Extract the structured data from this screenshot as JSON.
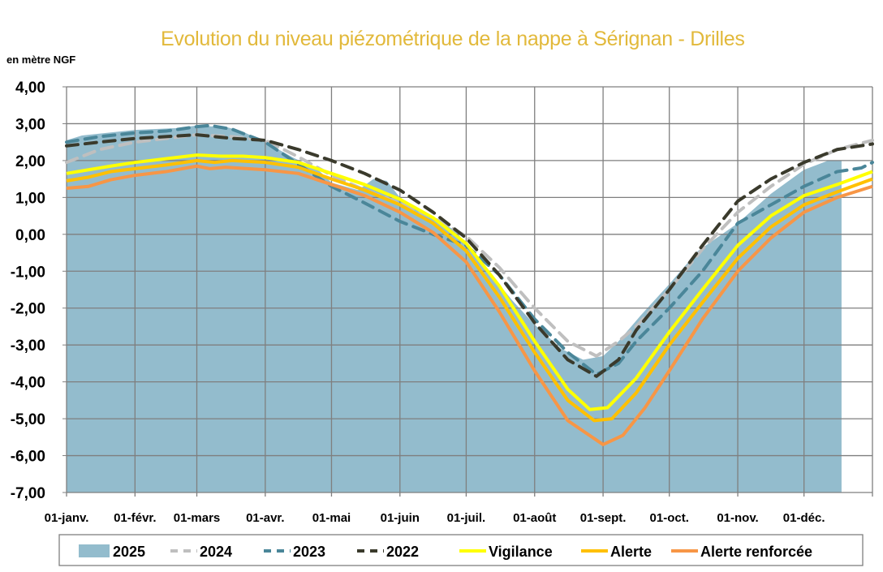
{
  "chart_data": {
    "type": "line",
    "title": "Evolution du niveau piézométrique de la nappe à Sérignan  - Drilles",
    "ylabel": "en mètre NGF",
    "xlabel": "",
    "ylim": [
      -7,
      4
    ],
    "yticks": [
      "4,00",
      "3,00",
      "2,00",
      "1,00",
      "0,00",
      "-1,00",
      "-2,00",
      "-3,00",
      "-4,00",
      "-5,00",
      "-6,00",
      "-7,00"
    ],
    "ytick_values": [
      4,
      3,
      2,
      1,
      0,
      -1,
      -2,
      -3,
      -4,
      -5,
      -6,
      -7
    ],
    "xlim_days": [
      0,
      365
    ],
    "xticks": [
      "01-janv.",
      "01-févr.",
      "01-mars",
      "01-avr.",
      "01-mai",
      "01-juin",
      "01-juil.",
      "01-août",
      "01-sept.",
      "01-oct.",
      "01-nov.",
      "01-déc."
    ],
    "xtick_days": [
      0,
      31,
      59,
      90,
      120,
      151,
      181,
      212,
      243,
      273,
      304,
      334
    ],
    "grid": true,
    "legend_position": "bottom",
    "series": [
      {
        "name": "2025",
        "style": "area",
        "color": "#93BCCD",
        "points": [
          [
            0,
            2.55
          ],
          [
            7,
            2.68
          ],
          [
            31,
            2.83
          ],
          [
            50,
            2.88
          ],
          [
            59,
            2.95
          ],
          [
            73,
            2.9
          ],
          [
            80,
            2.78
          ],
          [
            90,
            2.5
          ],
          [
            103,
            2.07
          ],
          [
            114,
            1.75
          ],
          [
            120,
            1.4
          ],
          [
            132,
            1.2
          ],
          [
            139,
            1.5
          ],
          [
            145,
            1.45
          ],
          [
            151,
            1.0
          ],
          [
            161,
            0.65
          ],
          [
            176,
            0.1
          ],
          [
            181,
            -0.25
          ],
          [
            191,
            -1.0
          ],
          [
            202,
            -1.8
          ],
          [
            212,
            -2.45
          ],
          [
            224,
            -3.1
          ],
          [
            234,
            -3.4
          ],
          [
            243,
            -3.3
          ],
          [
            250,
            -2.9
          ],
          [
            260,
            -2.2
          ],
          [
            273,
            -1.35
          ],
          [
            286,
            -0.45
          ],
          [
            304,
            0.3
          ],
          [
            319,
            1.1
          ],
          [
            334,
            1.75
          ],
          [
            345,
            2.0
          ],
          [
            351,
            2.0
          ]
        ]
      },
      {
        "name": "2024",
        "style": "dash",
        "color": "#BFBFBF",
        "points": [
          [
            0,
            1.95
          ],
          [
            15,
            2.3
          ],
          [
            31,
            2.5
          ],
          [
            59,
            2.7
          ],
          [
            75,
            2.65
          ],
          [
            90,
            2.55
          ],
          [
            105,
            2.1
          ],
          [
            120,
            1.6
          ],
          [
            135,
            1.2
          ],
          [
            151,
            0.85
          ],
          [
            166,
            0.45
          ],
          [
            181,
            -0.05
          ],
          [
            196,
            -0.9
          ],
          [
            212,
            -2.0
          ],
          [
            227,
            -2.9
          ],
          [
            240,
            -3.3
          ],
          [
            250,
            -2.9
          ],
          [
            258,
            -2.5
          ],
          [
            273,
            -1.5
          ],
          [
            288,
            -0.4
          ],
          [
            304,
            0.6
          ],
          [
            319,
            1.3
          ],
          [
            334,
            1.9
          ],
          [
            349,
            2.3
          ],
          [
            365,
            2.55
          ]
        ]
      },
      {
        "name": "2023",
        "style": "dash",
        "color": "#4A8699",
        "points": [
          [
            0,
            2.5
          ],
          [
            15,
            2.65
          ],
          [
            31,
            2.75
          ],
          [
            45,
            2.8
          ],
          [
            59,
            2.92
          ],
          [
            65,
            2.95
          ],
          [
            75,
            2.85
          ],
          [
            90,
            2.5
          ],
          [
            105,
            1.9
          ],
          [
            120,
            1.3
          ],
          [
            135,
            0.85
          ],
          [
            151,
            0.35
          ],
          [
            166,
            0.0
          ],
          [
            181,
            -0.3
          ],
          [
            196,
            -1.1
          ],
          [
            212,
            -2.3
          ],
          [
            227,
            -3.2
          ],
          [
            240,
            -3.8
          ],
          [
            250,
            -3.5
          ],
          [
            258,
            -2.9
          ],
          [
            273,
            -2.0
          ],
          [
            288,
            -1.0
          ],
          [
            304,
            0.3
          ],
          [
            319,
            0.8
          ],
          [
            334,
            1.3
          ],
          [
            349,
            1.7
          ],
          [
            360,
            1.8
          ],
          [
            365,
            1.95
          ]
        ]
      },
      {
        "name": "2022",
        "style": "dash",
        "color": "#3A3A2C",
        "points": [
          [
            0,
            2.4
          ],
          [
            15,
            2.5
          ],
          [
            31,
            2.6
          ],
          [
            59,
            2.7
          ],
          [
            75,
            2.6
          ],
          [
            90,
            2.55
          ],
          [
            105,
            2.3
          ],
          [
            120,
            2.0
          ],
          [
            135,
            1.65
          ],
          [
            151,
            1.2
          ],
          [
            166,
            0.6
          ],
          [
            181,
            -0.1
          ],
          [
            196,
            -1.1
          ],
          [
            212,
            -2.4
          ],
          [
            227,
            -3.4
          ],
          [
            240,
            -3.85
          ],
          [
            250,
            -3.4
          ],
          [
            258,
            -2.6
          ],
          [
            273,
            -1.5
          ],
          [
            288,
            -0.3
          ],
          [
            304,
            0.9
          ],
          [
            319,
            1.5
          ],
          [
            334,
            1.95
          ],
          [
            349,
            2.3
          ],
          [
            365,
            2.45
          ]
        ]
      },
      {
        "name": "Vigilance",
        "style": "solid",
        "color": "#FFFF00",
        "points": [
          [
            0,
            1.65
          ],
          [
            10,
            1.75
          ],
          [
            20,
            1.85
          ],
          [
            31,
            1.95
          ],
          [
            45,
            2.05
          ],
          [
            59,
            2.15
          ],
          [
            70,
            2.12
          ],
          [
            80,
            2.12
          ],
          [
            90,
            2.08
          ],
          [
            105,
            1.95
          ],
          [
            120,
            1.65
          ],
          [
            135,
            1.35
          ],
          [
            151,
            0.95
          ],
          [
            166,
            0.45
          ],
          [
            181,
            -0.25
          ],
          [
            196,
            -1.4
          ],
          [
            212,
            -2.9
          ],
          [
            227,
            -4.2
          ],
          [
            237,
            -4.75
          ],
          [
            245,
            -4.7
          ],
          [
            258,
            -3.9
          ],
          [
            273,
            -2.65
          ],
          [
            288,
            -1.5
          ],
          [
            304,
            -0.3
          ],
          [
            319,
            0.5
          ],
          [
            334,
            1.05
          ],
          [
            349,
            1.35
          ],
          [
            365,
            1.7
          ]
        ]
      },
      {
        "name": "Alerte",
        "style": "solid",
        "color": "#FFC000",
        "points": [
          [
            0,
            1.45
          ],
          [
            10,
            1.55
          ],
          [
            20,
            1.7
          ],
          [
            31,
            1.78
          ],
          [
            45,
            1.88
          ],
          [
            59,
            2.0
          ],
          [
            67,
            1.95
          ],
          [
            75,
            2.0
          ],
          [
            90,
            1.95
          ],
          [
            105,
            1.82
          ],
          [
            120,
            1.5
          ],
          [
            135,
            1.2
          ],
          [
            151,
            0.8
          ],
          [
            166,
            0.3
          ],
          [
            181,
            -0.45
          ],
          [
            196,
            -1.7
          ],
          [
            212,
            -3.2
          ],
          [
            227,
            -4.5
          ],
          [
            239,
            -5.05
          ],
          [
            247,
            -5.0
          ],
          [
            258,
            -4.3
          ],
          [
            273,
            -3.0
          ],
          [
            288,
            -1.85
          ],
          [
            304,
            -0.65
          ],
          [
            319,
            0.2
          ],
          [
            334,
            0.8
          ],
          [
            349,
            1.15
          ],
          [
            365,
            1.5
          ]
        ]
      },
      {
        "name": "Alerte renforcée",
        "style": "solid",
        "color": "#F79646",
        "points": [
          [
            0,
            1.25
          ],
          [
            10,
            1.3
          ],
          [
            20,
            1.48
          ],
          [
            31,
            1.6
          ],
          [
            45,
            1.7
          ],
          [
            59,
            1.85
          ],
          [
            65,
            1.78
          ],
          [
            72,
            1.82
          ],
          [
            90,
            1.75
          ],
          [
            105,
            1.65
          ],
          [
            120,
            1.35
          ],
          [
            135,
            1.05
          ],
          [
            151,
            0.6
          ],
          [
            166,
            0.05
          ],
          [
            181,
            -0.75
          ],
          [
            196,
            -2.1
          ],
          [
            212,
            -3.7
          ],
          [
            227,
            -5.05
          ],
          [
            243,
            -5.7
          ],
          [
            252,
            -5.45
          ],
          [
            262,
            -4.7
          ],
          [
            273,
            -3.7
          ],
          [
            288,
            -2.3
          ],
          [
            304,
            -1.0
          ],
          [
            319,
            -0.1
          ],
          [
            334,
            0.6
          ],
          [
            349,
            1.0
          ],
          [
            365,
            1.3
          ]
        ]
      }
    ]
  }
}
